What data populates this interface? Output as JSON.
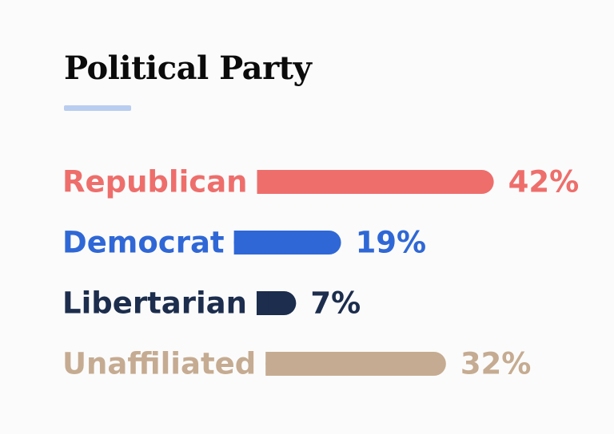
{
  "chart_data": {
    "type": "bar",
    "orientation": "horizontal",
    "title": "Political Party",
    "categories": [
      "Republican",
      "Democrat",
      "Libertarian",
      "Unaffiliated"
    ],
    "values": [
      42,
      19,
      7,
      32
    ],
    "value_labels": [
      "42%",
      "19%",
      "7%",
      "32%"
    ],
    "unit": "%",
    "colors": [
      "#ee6e6b",
      "#2f68d6",
      "#1c2d4d",
      "#c5ab91"
    ],
    "title_accent_color": "#b9cdf0",
    "grid": false,
    "legend": "none"
  }
}
